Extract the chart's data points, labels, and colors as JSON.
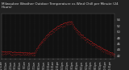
{
  "title": "Milwaukee Weather Outdoor Temperature vs Wind Chill per Minute (24 Hours)",
  "title_fontsize": 3.0,
  "title_color": "#dddddd",
  "title_bg_color": "#222222",
  "background_color": "#111111",
  "plot_bg_color": "#111111",
  "dot_color": "#ff2222",
  "ylim": [
    41,
    56
  ],
  "yticks": [
    42,
    44,
    46,
    48,
    50,
    52,
    54
  ],
  "ytick_fontsize": 2.8,
  "xtick_fontsize": 2.0,
  "grid_color": "#555555",
  "num_points": 1440,
  "xtick_labels": [
    "12:01am",
    "1:01am",
    "2:01am",
    "3:01am",
    "4:01am",
    "5:01am",
    "6:01am",
    "7:01am",
    "8:01am",
    "9:01am",
    "10:01am",
    "11:01am",
    "12:01pm",
    "1:01pm",
    "2:01pm",
    "3:01pm",
    "4:01pm",
    "5:01pm",
    "6:01pm",
    "7:01pm",
    "8:01pm",
    "9:01pm",
    "10:01pm",
    "11:01pm"
  ]
}
